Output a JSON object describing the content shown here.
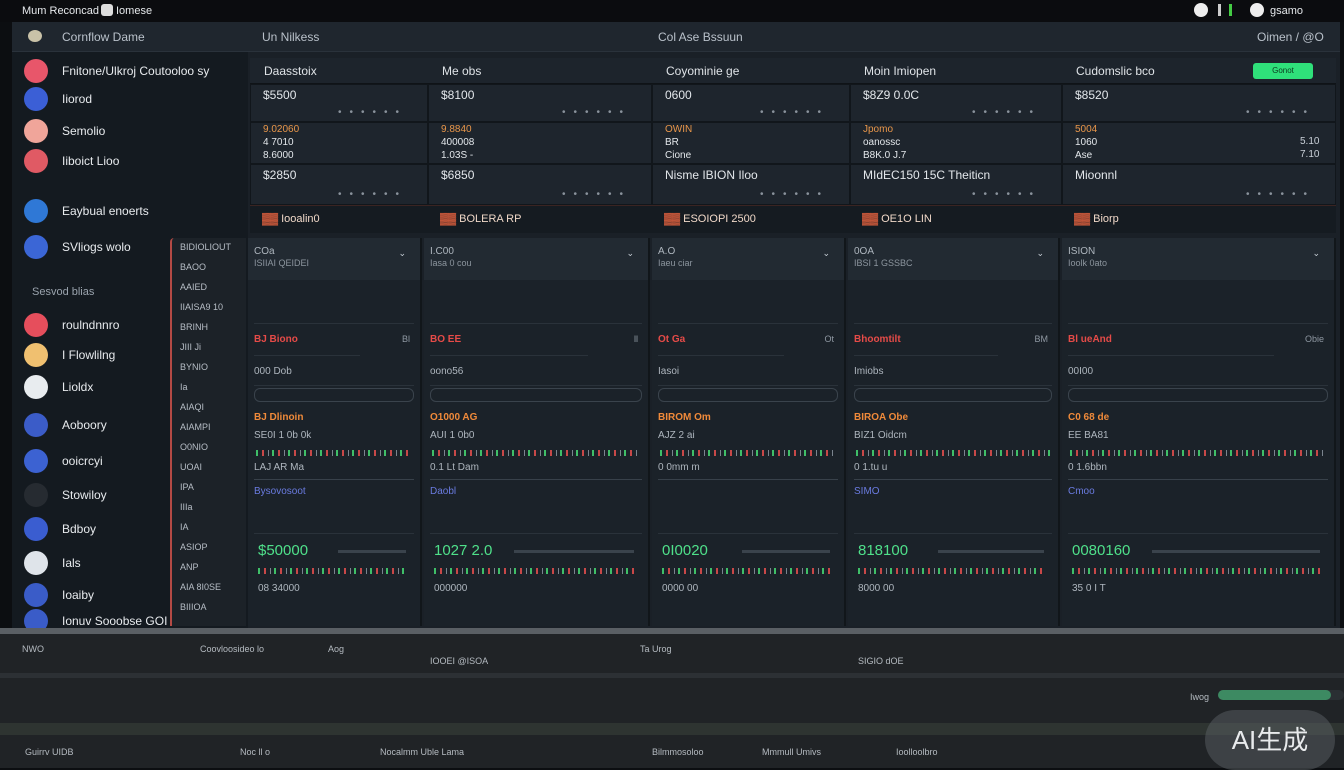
{
  "topbar": {
    "app": "Mum Reconcad",
    "tab": "Iomese",
    "user": "gsamo"
  },
  "window": {
    "brand": "Cornflow Dame",
    "path": "Un Nilkess",
    "title": "Col Ase Bssuun",
    "right": "Oimen / @O"
  },
  "sidebar": {
    "items": [
      {
        "label": "Fnitone/Ulkroj Coutooloo sy",
        "color": "#e8566a"
      },
      {
        "label": "Iiorod",
        "color": "#3b5fd6"
      },
      {
        "label": "Semolio",
        "color": "#f0a59a"
      },
      {
        "label": "Iiboict Lioo",
        "color": "#e05a64"
      },
      {
        "label": "Eaybual enoerts",
        "color": "#2f78d6"
      },
      {
        "label": "SVliogs wolo",
        "color": "#3b66d6"
      }
    ],
    "group": "Sesvod blias",
    "group_items": [
      {
        "label": "roulndnnro",
        "color": "#e64e5c"
      },
      {
        "label": "I Flowlilng",
        "color": "#f0c070"
      },
      {
        "label": "Lioldx",
        "color": "#e8ecef"
      },
      {
        "label": "Aoboory",
        "color": "#3b5cc8"
      },
      {
        "label": "ooicrcyi",
        "color": "#3c62d2"
      },
      {
        "label": "Stowiloy",
        "color": "#262b31"
      },
      {
        "label": "Bdboy",
        "color": "#3a5dd0"
      },
      {
        "label": "Ials",
        "color": "#dfe4ea"
      },
      {
        "label": "Ioaiby",
        "color": "#3a5cc8"
      },
      {
        "label": "Ionuv  Sooobse GOI",
        "color": "#3a5cc8"
      }
    ]
  },
  "columns": [
    {
      "head": "Daasstoix",
      "stat1": "$5500",
      "stat2a": "9.02060",
      "stat2b": "4 7010",
      "stat3": "8.6000",
      "stat4": "$2850",
      "strip": "Iooalin0"
    },
    {
      "head": "Me obs",
      "stat1": "$8100",
      "stat2a": "9.8840",
      "stat2b": "400008",
      "stat3": "1.03S -",
      "stat4": "$6850",
      "strip": "BOLERA RP"
    },
    {
      "head": "Coyominie ge",
      "stat1": "0600",
      "stat2a": "OWIN",
      "stat2b": "BR",
      "stat3": "Cione",
      "stat4": "Nisme IBION Iloo",
      "strip": "ESOIOPI 2500"
    },
    {
      "head": "Moin Imiopen",
      "stat1": "$8Z9 0.0C",
      "stat2a": "Jpomo",
      "stat2b": "oanossc",
      "stat3": "B8K.0 J.7",
      "stat4": "MIdEC150  15C Theiticn",
      "strip": "OE1O LIN"
    },
    {
      "head": "Cudomslic bco",
      "stat1": "$8520",
      "stat2a": "5004",
      "stat2b": "1060",
      "stat3": "Ase",
      "stat4": "Mioonnl",
      "strip": "Biorp",
      "extra": "5.10",
      "extra2": "7.10",
      "button": "Gonot"
    }
  ],
  "lower": [
    {
      "title": "COa",
      "sub": "ISIIAI  QEIDEI",
      "tag": "Bl",
      "alert": "BJ Biono",
      "label2": "000 Dob",
      "orange": "BJ Dlinoin",
      "sum": "SE0I 1  0b 0k",
      "line": "LAJ AR  Ma",
      "blue": "Bysovosoot",
      "value": "$50000",
      "foot": "08 34000"
    },
    {
      "title": "I.C00",
      "sub": "Iasa  0 cou",
      "tag": "ll",
      "alert": "BO EE",
      "label2": "oono56",
      "orange": "O1000 AG",
      "sum": "AUI 1 0b0",
      "line": "0.1 Lt Dam",
      "blue": "Daobl",
      "value": "1027 2.0",
      "foot": "000000"
    },
    {
      "title": "A.O",
      "sub": "Iaeu  ciar",
      "tag": "Ot",
      "alert": "Ot Ga",
      "label2": "Iasoi",
      "orange": "BIROM Om",
      "sum": "AJZ 2 ai",
      "line": "0 0mm  m",
      "blue": "",
      "value": "0I0020",
      "foot": "0000 00"
    },
    {
      "title": "0OA",
      "sub": "IBSI 1 GSSBC",
      "tag": "BM",
      "alert": "Bhoomtilt",
      "label2": "Imiobs",
      "orange": "BIROA Obe",
      "sum": "BIZ1 Oidcm",
      "line": "0 1.tu u",
      "blue": "SIMO",
      "value": "818100",
      "foot": "8000 00"
    },
    {
      "title": "ISION",
      "sub": "Ioolk 0ato",
      "tag": "Obie",
      "alert": "Bl ueAnd",
      "label2": "00I00",
      "orange": "C0 68 de",
      "sum": "EE BA81",
      "line": "0 1.6bbn",
      "blue": "Cmoo",
      "value": "0080160",
      "foot": "35 0 I T"
    }
  ],
  "narrow": [
    "BIDIOLIOUT",
    "BAOO",
    "AAIED",
    "IIAISA9 10",
    "BRINH",
    "JIII  Ji",
    "BYNIO",
    "Ia",
    "AIAQI",
    "AIAMPI",
    "O0NIO",
    "UOAI",
    "IPA",
    "IIIa",
    "IA",
    "ASIOP",
    "ANP",
    "AIA 8I0SE",
    "BIIIOA"
  ],
  "bottom": {
    "row1": [
      "NWO",
      "Coovloosideo lo",
      "Aog",
      "Ta  Urog"
    ],
    "status": [
      "Guirrv UIDB",
      "Noc ll o",
      "Nocalmm Uble Lama",
      "Bilmmosoloo",
      "Mmmull Umivs",
      "Ioolloolbro"
    ],
    "progress_label": "Iwog",
    "progress": 0.9,
    "footer": "IOOEI  @ISOA",
    "footer2": "SIGIO dOE"
  },
  "accent": "#2fe07a"
}
